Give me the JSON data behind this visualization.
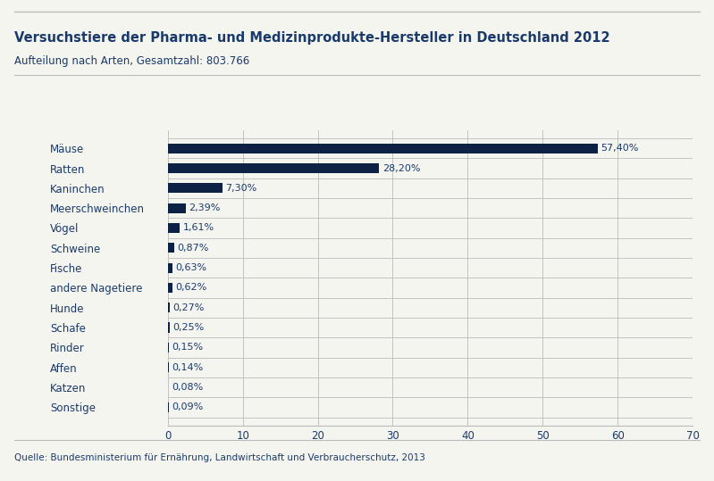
{
  "title": "Versuchstiere der Pharma- und Medizinprodukte-Hersteller in Deutschland 2012",
  "subtitle": "Aufteilung nach Arten, Gesamtzahl: 803.766",
  "source": "Quelle: Bundesministerium für Ernährung, Landwirtschaft und Verbraucherschutz, 2013",
  "categories": [
    "Mäuse",
    "Ratten",
    "Kaninchen",
    "Meerschweinchen",
    "Vögel",
    "Schweine",
    "Fische",
    "andere Nagetiere",
    "Hunde",
    "Schafe",
    "Rinder",
    "Affen",
    "Katzen",
    "Sonstige"
  ],
  "values": [
    57.4,
    28.2,
    7.3,
    2.39,
    1.61,
    0.87,
    0.63,
    0.62,
    0.27,
    0.25,
    0.15,
    0.14,
    0.08,
    0.09
  ],
  "labels": [
    "57,40%",
    "28,20%",
    "7,30%",
    "2,39%",
    "1,61%",
    "0,87%",
    "0,63%",
    "0,62%",
    "0,27%",
    "0,25%",
    "0,15%",
    "0,14%",
    "0,08%",
    "0,09%"
  ],
  "bar_color": "#0d2145",
  "background_color": "#f5f5f0",
  "xlim": [
    0,
    70
  ],
  "xticks": [
    0,
    10,
    20,
    30,
    40,
    50,
    60,
    70
  ],
  "title_fontsize": 10.5,
  "subtitle_fontsize": 8.5,
  "label_fontsize": 8.0,
  "tick_fontsize": 8.5,
  "source_fontsize": 7.5,
  "category_fontsize": 8.5,
  "text_color": "#1a3a6b",
  "separator_color": "#bbbbbb",
  "top_line_color": "#bbbbbb"
}
